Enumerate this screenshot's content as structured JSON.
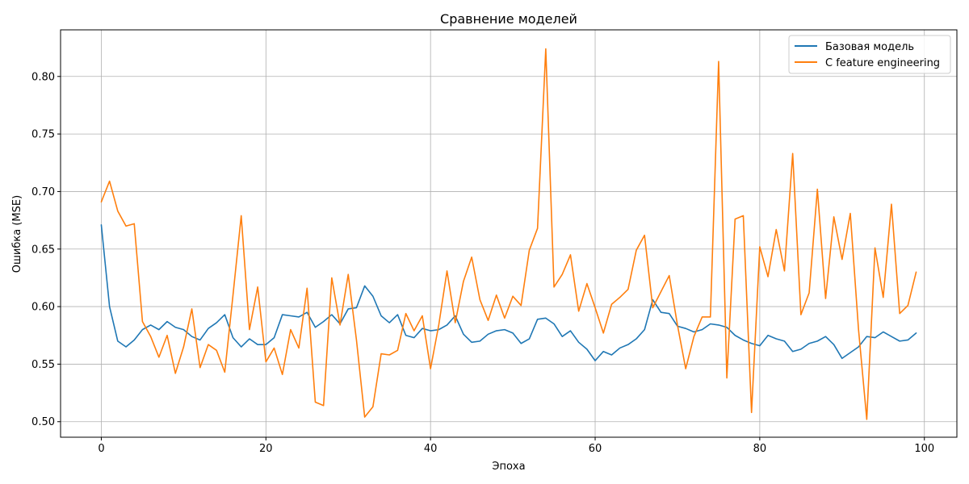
{
  "chart_data": {
    "type": "line",
    "title": "Сравнение моделей",
    "xlabel": "Эпоха",
    "ylabel": "Ошибка (MSE)",
    "xlim": [
      -4.95,
      103.95
    ],
    "ylim": [
      0.4865,
      0.8405
    ],
    "xticks": [
      0,
      20,
      40,
      60,
      80,
      100
    ],
    "yticks": [
      0.5,
      0.55,
      0.6,
      0.65,
      0.7,
      0.75,
      0.8
    ],
    "xtick_labels": [
      "0",
      "20",
      "40",
      "60",
      "80",
      "100"
    ],
    "ytick_labels": [
      "0.50",
      "0.55",
      "0.60",
      "0.65",
      "0.70",
      "0.75",
      "0.80"
    ],
    "grid": true,
    "legend_position": "top-right",
    "x": [
      0,
      1,
      2,
      3,
      4,
      5,
      6,
      7,
      8,
      9,
      10,
      11,
      12,
      13,
      14,
      15,
      16,
      17,
      18,
      19,
      20,
      21,
      22,
      23,
      24,
      25,
      26,
      27,
      28,
      29,
      30,
      31,
      32,
      33,
      34,
      35,
      36,
      37,
      38,
      39,
      40,
      41,
      42,
      43,
      44,
      45,
      46,
      47,
      48,
      49,
      50,
      51,
      52,
      53,
      54,
      55,
      56,
      57,
      58,
      59,
      60,
      61,
      62,
      63,
      64,
      65,
      66,
      67,
      68,
      69,
      70,
      71,
      72,
      73,
      74,
      75,
      76,
      77,
      78,
      79,
      80,
      81,
      82,
      83,
      84,
      85,
      86,
      87,
      88,
      89,
      90,
      91,
      92,
      93,
      94,
      95,
      96,
      97,
      98,
      99
    ],
    "series": [
      {
        "name": "Базовая модель",
        "color": "#1f77b4",
        "values": [
          0.671,
          0.6,
          0.57,
          0.565,
          0.571,
          0.58,
          0.584,
          0.58,
          0.587,
          0.582,
          0.58,
          0.574,
          0.571,
          0.581,
          0.586,
          0.593,
          0.573,
          0.565,
          0.572,
          0.567,
          0.567,
          0.573,
          0.593,
          0.592,
          0.591,
          0.595,
          0.582,
          0.587,
          0.593,
          0.585,
          0.598,
          0.599,
          0.618,
          0.609,
          0.592,
          0.586,
          0.593,
          0.575,
          0.573,
          0.581,
          0.579,
          0.58,
          0.584,
          0.592,
          0.576,
          0.569,
          0.57,
          0.576,
          0.579,
          0.58,
          0.577,
          0.568,
          0.572,
          0.589,
          0.59,
          0.585,
          0.574,
          0.579,
          0.569,
          0.563,
          0.553,
          0.561,
          0.558,
          0.564,
          0.567,
          0.572,
          0.58,
          0.606,
          0.595,
          0.594,
          0.583,
          0.581,
          0.578,
          0.58,
          0.585,
          0.584,
          0.582,
          0.575,
          0.571,
          0.568,
          0.566,
          0.575,
          0.572,
          0.57,
          0.561,
          0.563,
          0.568,
          0.57,
          0.574,
          0.567,
          0.555,
          0.56,
          0.565,
          0.574,
          0.573,
          0.578,
          0.574,
          0.57,
          0.571,
          0.577
        ]
      },
      {
        "name": "C feature engineering",
        "color": "#ff7f0e",
        "values": [
          0.691,
          0.709,
          0.683,
          0.67,
          0.672,
          0.587,
          0.574,
          0.556,
          0.575,
          0.542,
          0.565,
          0.598,
          0.547,
          0.567,
          0.562,
          0.543,
          0.61,
          0.679,
          0.58,
          0.617,
          0.552,
          0.564,
          0.541,
          0.58,
          0.564,
          0.616,
          0.517,
          0.514,
          0.625,
          0.584,
          0.628,
          0.571,
          0.504,
          0.513,
          0.559,
          0.558,
          0.562,
          0.594,
          0.579,
          0.592,
          0.546,
          0.584,
          0.631,
          0.586,
          0.622,
          0.643,
          0.606,
          0.588,
          0.61,
          0.59,
          0.609,
          0.601,
          0.649,
          0.668,
          0.824,
          0.617,
          0.628,
          0.645,
          0.596,
          0.62,
          0.599,
          0.577,
          0.602,
          0.608,
          0.615,
          0.649,
          0.662,
          0.599,
          0.613,
          0.627,
          0.584,
          0.546,
          0.574,
          0.591,
          0.591,
          0.813,
          0.538,
          0.676,
          0.679,
          0.508,
          0.652,
          0.626,
          0.667,
          0.631,
          0.733,
          0.593,
          0.612,
          0.702,
          0.607,
          0.678,
          0.641,
          0.681,
          0.58,
          0.502,
          0.651,
          0.608,
          0.689,
          0.594,
          0.601,
          0.63
        ]
      }
    ]
  }
}
